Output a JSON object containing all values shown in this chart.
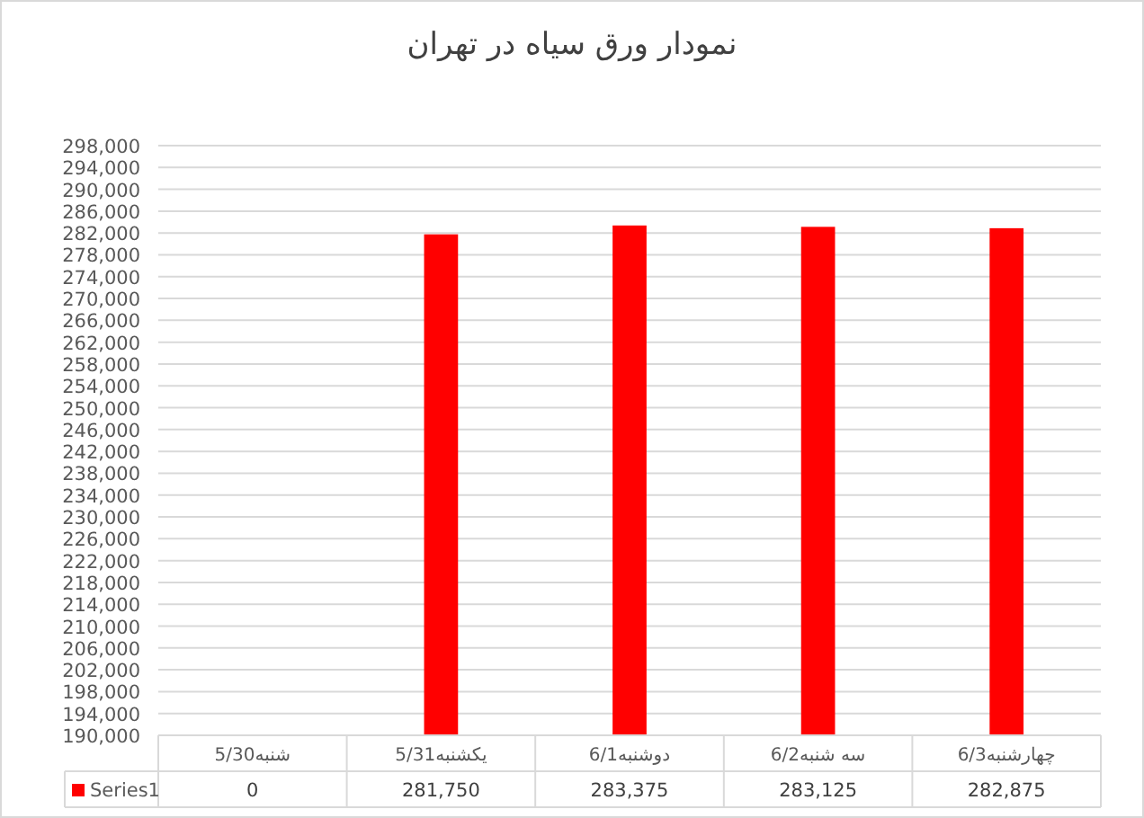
{
  "chart_data": {
    "type": "bar",
    "title": "نمودار ورق سیاه در تهران",
    "categories": [
      "شنبه5/30",
      "یکشنبه5/31",
      "دوشنبه6/1",
      "سه شنبه6/2",
      "چهارشنبه6/3"
    ],
    "series": [
      {
        "name": "Series1",
        "color": "#ff0000",
        "values": [
          null,
          281750,
          283375,
          283125,
          282875
        ],
        "value_labels": [
          "0",
          "281,750",
          "283,375",
          "283,125",
          "282,875"
        ]
      }
    ],
    "ylim": [
      190000,
      298000
    ],
    "yticks": [
      {
        "value": 190000,
        "label": "190,000"
      },
      {
        "value": 194000,
        "label": "194,000"
      },
      {
        "value": 198000,
        "label": "198,000"
      },
      {
        "value": 202000,
        "label": "202,000"
      },
      {
        "value": 206000,
        "label": "206,000"
      },
      {
        "value": 210000,
        "label": "210,000"
      },
      {
        "value": 214000,
        "label": "214,000"
      },
      {
        "value": 218000,
        "label": "218,000"
      },
      {
        "value": 222000,
        "label": "222,000"
      },
      {
        "value": 226000,
        "label": "226,000"
      },
      {
        "value": 230000,
        "label": "230,000"
      },
      {
        "value": 234000,
        "label": "234,000"
      },
      {
        "value": 238000,
        "label": "238,000"
      },
      {
        "value": 242000,
        "label": "242,000"
      },
      {
        "value": 246000,
        "label": "246,000"
      },
      {
        "value": 250000,
        "label": "250,000"
      },
      {
        "value": 254000,
        "label": "254,000"
      },
      {
        "value": 258000,
        "label": "258,000"
      },
      {
        "value": 262000,
        "label": "262,000"
      },
      {
        "value": 266000,
        "label": "266,000"
      },
      {
        "value": 270000,
        "label": "270,000"
      },
      {
        "value": 274000,
        "label": "274,000"
      },
      {
        "value": 278000,
        "label": "278,000"
      },
      {
        "value": 282000,
        "label": "282,000"
      },
      {
        "value": 286000,
        "label": "286,000"
      },
      {
        "value": 290000,
        "label": "290,000"
      },
      {
        "value": 294000,
        "label": "294,000"
      },
      {
        "value": 298000,
        "label": "298,000"
      }
    ],
    "grid": "y",
    "legend": "bottom"
  }
}
